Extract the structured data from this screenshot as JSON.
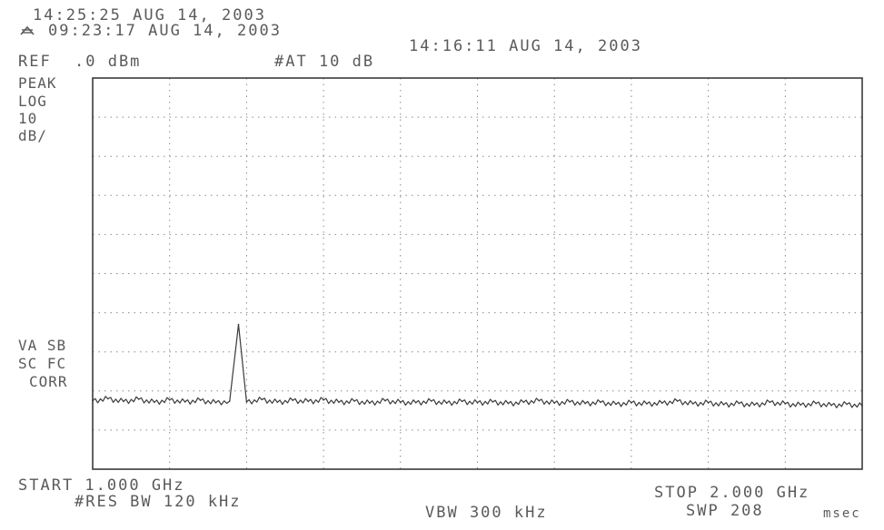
{
  "header": {
    "timestamp": "14:25:25 AUG 14, 2003",
    "trace_range_start": "09:23:17 AUG 14, 2003",
    "trace_range_end": "14:16:11 AUG 14, 2003",
    "ref_label": "REF",
    "ref_value": ".0 dBm",
    "attenuation": "#AT 10 dB"
  },
  "left_panel": {
    "detector": "PEAK",
    "scale_type": "LOG",
    "scale_value": "10",
    "scale_unit": "dB/",
    "status_line1": "VA SB",
    "status_line2": "SC FC",
    "status_line3": "CORR"
  },
  "footer": {
    "start_label": "START 1.000 GHz",
    "stop_label": "STOP 2.000 GHz",
    "res_bw": "#RES BW 120 kHz",
    "vbw": "VBW 300 kHz",
    "sweep_time": "SWP 208",
    "sweep_unit": "msec"
  },
  "icons": {
    "trace_icon": "trace-compare-icon"
  },
  "colors": {
    "ink": "#3a3a3a",
    "text": "#5a5a5a",
    "grid": "#8a8a8a",
    "background": "#ffffff"
  },
  "chart_data": {
    "type": "line",
    "x_unit": "GHz",
    "y_unit": "dBm",
    "xlim": [
      1.0,
      2.0
    ],
    "ylim": [
      -100,
      0
    ],
    "x_divisions": 10,
    "y_divisions": 10,
    "grid": true,
    "series": [
      {
        "x": [
          1.0,
          1.02,
          1.04,
          1.06,
          1.08,
          1.1,
          1.12,
          1.14,
          1.16,
          1.178,
          1.1895,
          1.2,
          1.22,
          1.24,
          1.26,
          1.28,
          1.3,
          1.32,
          1.34,
          1.36,
          1.38,
          1.4,
          1.42,
          1.44,
          1.46,
          1.48,
          1.5,
          1.52,
          1.54,
          1.56,
          1.58,
          1.6,
          1.62,
          1.64,
          1.66,
          1.68,
          1.7,
          1.72,
          1.74,
          1.76,
          1.78,
          1.8,
          1.82,
          1.84,
          1.86,
          1.88,
          1.9,
          1.92,
          1.94,
          1.96,
          1.98,
          2.0
        ],
        "values": [
          -82.5,
          -82.0,
          -82.7,
          -82.1,
          -82.9,
          -82.3,
          -82.8,
          -82.4,
          -83.0,
          -82.6,
          -63.0,
          -82.8,
          -82.2,
          -82.9,
          -82.4,
          -82.7,
          -82.3,
          -82.9,
          -82.6,
          -83.1,
          -82.5,
          -82.9,
          -83.0,
          -82.6,
          -83.1,
          -82.7,
          -83.0,
          -82.8,
          -83.2,
          -82.9,
          -82.5,
          -83.1,
          -82.8,
          -83.2,
          -82.9,
          -83.4,
          -83.0,
          -83.3,
          -83.1,
          -82.6,
          -83.3,
          -83.0,
          -83.5,
          -83.2,
          -83.6,
          -82.9,
          -83.3,
          -83.6,
          -83.2,
          -83.7,
          -83.4,
          -83.8
        ]
      }
    ]
  }
}
